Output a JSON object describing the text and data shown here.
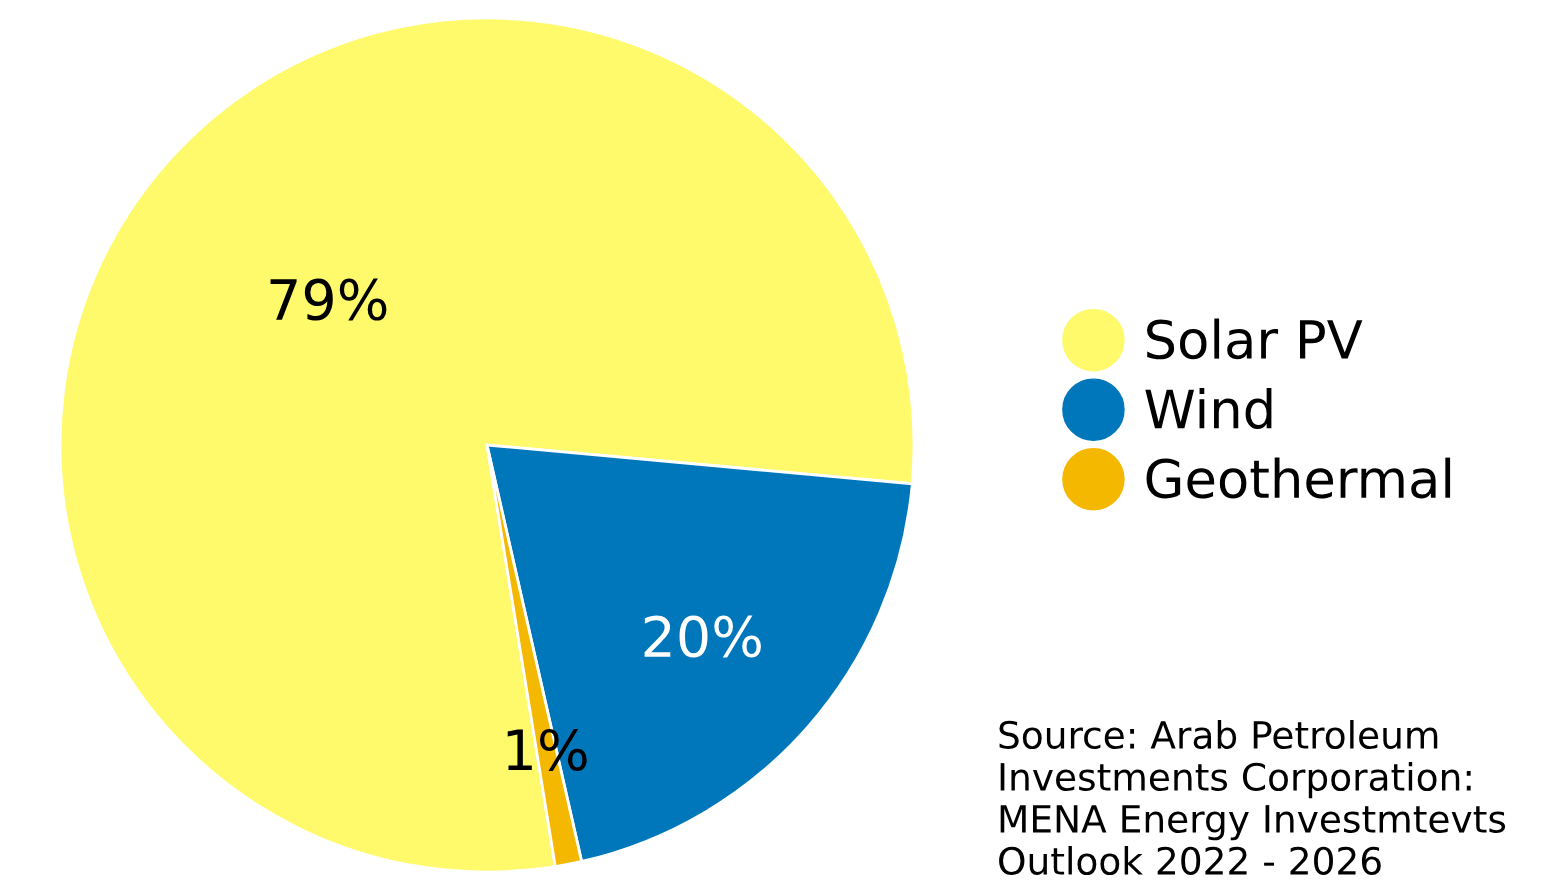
{
  "chart_data": {
    "type": "pie",
    "categories": [
      "Solar PV",
      "Wind",
      "Geothermal"
    ],
    "values": [
      79,
      20,
      1
    ],
    "colors": [
      "#fefa6b",
      "#0077bb",
      "#f5b800"
    ],
    "value_labels": [
      "79%",
      "20%",
      "1%"
    ],
    "legend": "right",
    "annotations": [
      "Source: Arab Petroleum Investments Corporation: MENA Energy Investmtevts Outlook 2022 - 2026"
    ]
  }
}
